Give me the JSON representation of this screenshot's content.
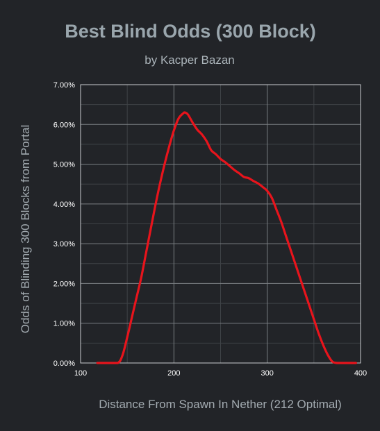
{
  "chart_data": {
    "type": "line",
    "title": "Best Blind Odds (300 Block)",
    "subtitle": "by Kacper Bazan",
    "xlabel": "Distance From Spawn In Nether (212 Optimal)",
    "ylabel": "Odds of Blinding 300 Blocks from Portal",
    "xlim": [
      100,
      400
    ],
    "ylim": [
      0,
      0.07
    ],
    "xticks": [
      100,
      200,
      300,
      400
    ],
    "yticks": [
      0,
      0.01,
      0.02,
      0.03,
      0.04,
      0.05,
      0.06,
      0.07
    ],
    "xtick_labels": [
      "100",
      "200",
      "300",
      "400"
    ],
    "ytick_labels": [
      "0.00%",
      "1.00%",
      "2.00%",
      "3.00%",
      "4.00%",
      "5.00%",
      "6.00%",
      "7.00%"
    ],
    "grid": true,
    "series": [
      {
        "color": "#e8141c",
        "x": [
          118,
          130,
          140,
          145,
          150,
          155,
          160,
          165,
          170,
          175,
          180,
          185,
          190,
          195,
          200,
          205,
          210,
          212,
          215,
          220,
          225,
          230,
          235,
          240,
          245,
          250,
          255,
          260,
          265,
          270,
          275,
          280,
          285,
          290,
          295,
          300,
          305,
          310,
          315,
          320,
          325,
          330,
          335,
          340,
          345,
          350,
          355,
          360,
          365,
          370,
          375,
          380,
          385,
          395
        ],
        "y": [
          0.0,
          0.0,
          0.0,
          0.002,
          0.0065,
          0.0115,
          0.0165,
          0.0215,
          0.0275,
          0.0335,
          0.0395,
          0.045,
          0.05,
          0.0545,
          0.0585,
          0.0615,
          0.0628,
          0.063,
          0.0625,
          0.0605,
          0.0587,
          0.0575,
          0.0558,
          0.0535,
          0.0525,
          0.0513,
          0.0505,
          0.0495,
          0.0485,
          0.0477,
          0.0468,
          0.0465,
          0.0458,
          0.0452,
          0.0443,
          0.0433,
          0.0415,
          0.0385,
          0.0355,
          0.032,
          0.0285,
          0.025,
          0.0215,
          0.018,
          0.0145,
          0.011,
          0.0075,
          0.0045,
          0.002,
          0.0003,
          0.0,
          0.0,
          0.0,
          0.0
        ]
      }
    ]
  },
  "colors": {
    "background": "#222428",
    "title": "#9aa6ad",
    "subtitle": "#aab3b9",
    "axis_title": "#a3abb1",
    "tick_label": "#ffffff",
    "grid_major": "#7b7f83",
    "grid_minor": "#3f4347",
    "frame": "#c9cccf"
  }
}
